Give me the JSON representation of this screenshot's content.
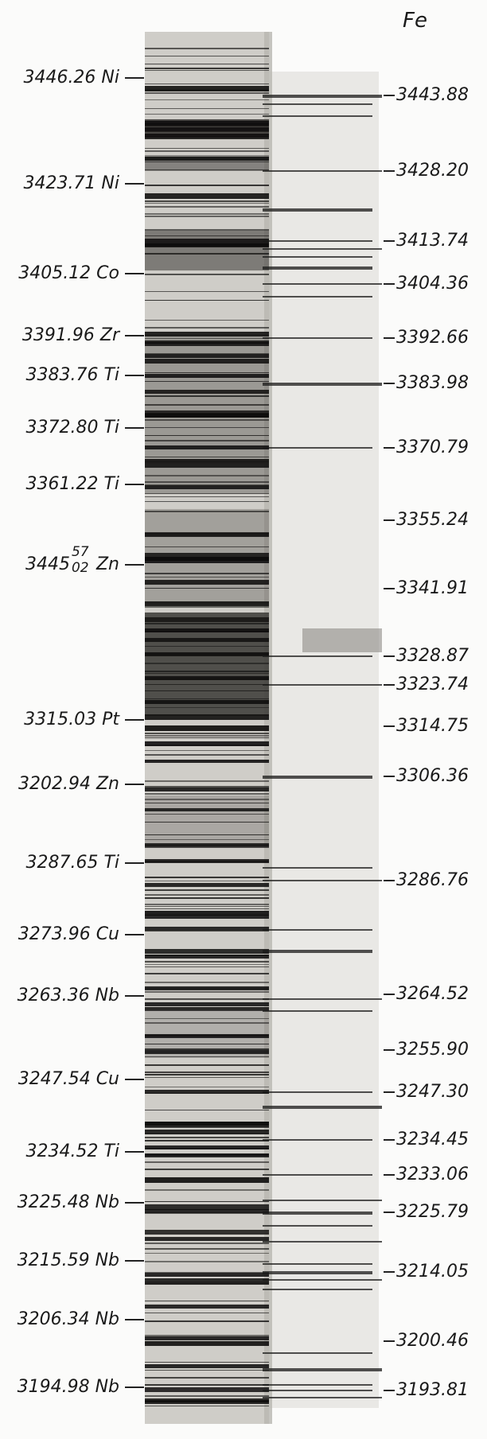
{
  "header": {
    "element": "Fe"
  },
  "left_labels": [
    {
      "id": "l1",
      "text": "3446.26 Ni"
    },
    {
      "id": "l2",
      "text": "3423.71 Ni"
    },
    {
      "id": "l3",
      "text": "3405.12 Co"
    },
    {
      "id": "l4",
      "text": "3391.96 Zr"
    },
    {
      "id": "l5",
      "text": "3383.76 Ti"
    },
    {
      "id": "l6",
      "text": "3372.80 Ti"
    },
    {
      "id": "l7",
      "text": "3361.22 Ti"
    },
    {
      "id": "l8",
      "main": "3445",
      "sup": "57",
      "sub": "02",
      "suffix": " Zn"
    },
    {
      "id": "l9",
      "text": "3315.03 Pt"
    },
    {
      "id": "l10",
      "text": "3202.94 Zn"
    },
    {
      "id": "l11",
      "text": "3287.65 Ti"
    },
    {
      "id": "l12",
      "text": "3273.96 Cu"
    },
    {
      "id": "l13",
      "text": "3263.36 Nb"
    },
    {
      "id": "l14",
      "text": "3247.54 Cu"
    },
    {
      "id": "l15",
      "text": "3234.52 Ti"
    },
    {
      "id": "l16",
      "text": "3225.48 Nb"
    },
    {
      "id": "l17",
      "text": "3215.59 Nb"
    },
    {
      "id": "l18",
      "text": "3206.34 Nb"
    },
    {
      "id": "l19",
      "text": "3194.98 Nb"
    }
  ],
  "right_labels": [
    {
      "id": "r1",
      "text": "3443.88"
    },
    {
      "id": "r2",
      "text": "3428.20"
    },
    {
      "id": "r3",
      "text": "3413.74"
    },
    {
      "id": "r4",
      "text": "3404.36"
    },
    {
      "id": "r5",
      "text": "3392.66"
    },
    {
      "id": "r6",
      "text": "3383.98"
    },
    {
      "id": "r7",
      "text": "3370.79"
    },
    {
      "id": "r8",
      "text": "3355.24"
    },
    {
      "id": "r9",
      "text": "3341.91"
    },
    {
      "id": "r10",
      "text": "3328.87"
    },
    {
      "id": "r11",
      "text": "3323.74"
    },
    {
      "id": "r12",
      "text": "3314.75"
    },
    {
      "id": "r13",
      "text": "3306.36"
    },
    {
      "id": "r14",
      "text": "3286.76"
    },
    {
      "id": "r15",
      "text": "3264.52"
    },
    {
      "id": "r16",
      "text": "3255.90"
    },
    {
      "id": "r17",
      "text": "3247.30"
    },
    {
      "id": "r18",
      "text": "3234.45"
    },
    {
      "id": "r19",
      "text": "3233.06"
    },
    {
      "id": "r20",
      "text": "3225.79"
    },
    {
      "id": "r21",
      "text": "3214.05"
    },
    {
      "id": "r22",
      "text": "3200.46"
    },
    {
      "id": "r23",
      "text": "3193.81"
    }
  ]
}
